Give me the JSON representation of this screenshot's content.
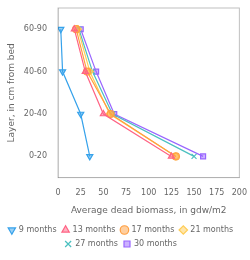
{
  "chart_data": {
    "type": "line",
    "xlabel": "Average dead biomass, in gdw/m2",
    "ylabel": "Layer, in cm from bed",
    "xlim": [
      0,
      200
    ],
    "xticks": [
      0,
      25,
      50,
      75,
      100,
      125,
      150,
      175,
      200
    ],
    "ylim": [
      0.5,
      4.5
    ],
    "yticks": [
      {
        "value": 1,
        "label": "0-20"
      },
      {
        "value": 2,
        "label": "20-40"
      },
      {
        "value": 3,
        "label": "40-60"
      },
      {
        "value": 4,
        "label": "60-90"
      }
    ],
    "grid": false,
    "legend": "bottom",
    "series": [
      {
        "name": "9 months",
        "x": [
          3,
          5,
          25,
          35
        ],
        "values": [
          4,
          3,
          2,
          1
        ],
        "marker": "triangle_down"
      },
      {
        "name": "13 months",
        "x": [
          18,
          30,
          50,
          125
        ],
        "values": [
          4,
          3,
          2,
          1
        ],
        "marker": "triangle_up"
      },
      {
        "name": "17 months",
        "x": [
          20,
          32,
          58,
          130
        ],
        "values": [
          4,
          3,
          2,
          1
        ],
        "marker": "circle"
      },
      {
        "name": "21 months",
        "x": [
          22,
          35,
          57,
          130
        ],
        "values": [
          4,
          3,
          2,
          1
        ],
        "marker": "diamond"
      },
      {
        "name": "27 months",
        "x": [
          23,
          38,
          60,
          150
        ],
        "values": [
          4,
          3,
          2,
          1
        ],
        "marker": "x"
      },
      {
        "name": "30 months",
        "x": [
          25,
          42,
          62,
          160
        ],
        "values": [
          4,
          3,
          2,
          1
        ],
        "marker": "square"
      }
    ]
  }
}
